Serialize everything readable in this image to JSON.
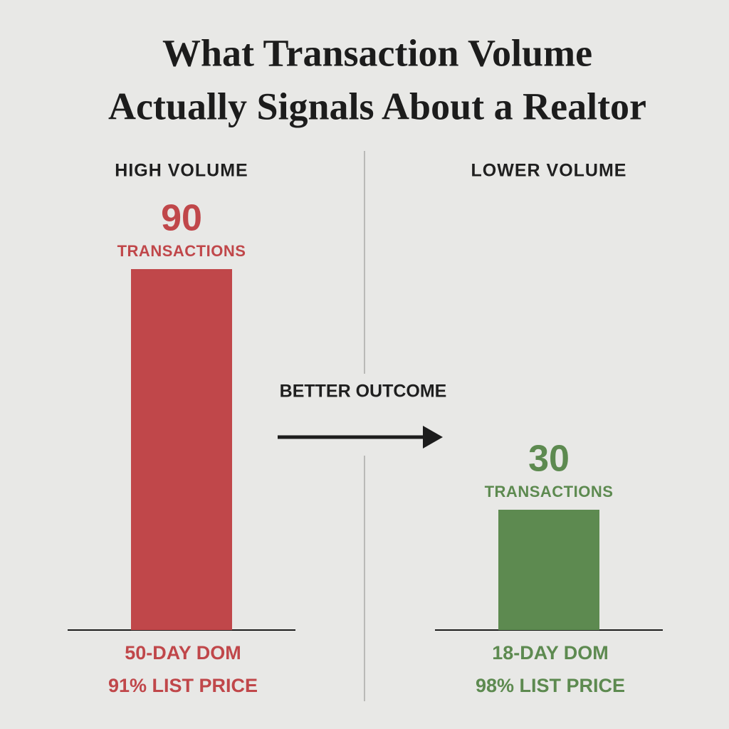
{
  "chart_data": {
    "type": "bar",
    "title": [
      "What Transaction Volume",
      "Actually Signals About a Realtor"
    ],
    "categories": [
      "HIGH VOLUME",
      "LOWER VOLUME"
    ],
    "values": [
      90,
      30
    ],
    "unit_label": "TRANSACTIONS",
    "colors": [
      "#c0474a",
      "#5d8a50"
    ],
    "notes": [
      [
        "50-DAY DOM",
        "91% LIST PRICE"
      ],
      [
        "18-DAY DOM",
        "98% LIST PRICE"
      ]
    ],
    "annotation": "BETTER OUTCOME"
  }
}
